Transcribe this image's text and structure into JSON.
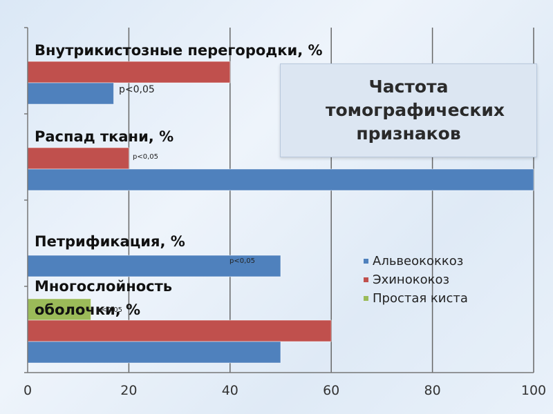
{
  "chart_data": {
    "type": "bar",
    "orientation": "horizontal",
    "title": "Частота томографических признаков",
    "xlim": [
      0,
      100
    ],
    "xticks": [
      "0",
      "20",
      "40",
      "60",
      "80",
      "100"
    ],
    "grid": true,
    "legend_position": "right",
    "categories": [
      "Внутрикистозные перегородки, %",
      "Распад ткани, %",
      "Петрификация, %",
      "Многослойность оболочки, %"
    ],
    "series": [
      {
        "name": "Альвеококкоз",
        "color": "#4f81bd",
        "values": [
          17,
          100,
          50,
          50
        ]
      },
      {
        "name": "Эхинококоз",
        "color": "#c0504d",
        "values": [
          40,
          20,
          0,
          60
        ]
      },
      {
        "name": "Простая киста",
        "color": "#9bbb59",
        "values": [
          0,
          0,
          0,
          12.5
        ]
      }
    ],
    "annotations": [
      {
        "text": "p<0,05",
        "category": "Внутрикистозные перегородки, %"
      },
      {
        "text": "p<0,05",
        "category": "Распад ткани, %"
      },
      {
        "text": "p<0,05",
        "category": "Петрификация, %"
      },
      {
        "text": "p<0,05",
        "category": "Многослойность оболочки, %"
      }
    ]
  }
}
